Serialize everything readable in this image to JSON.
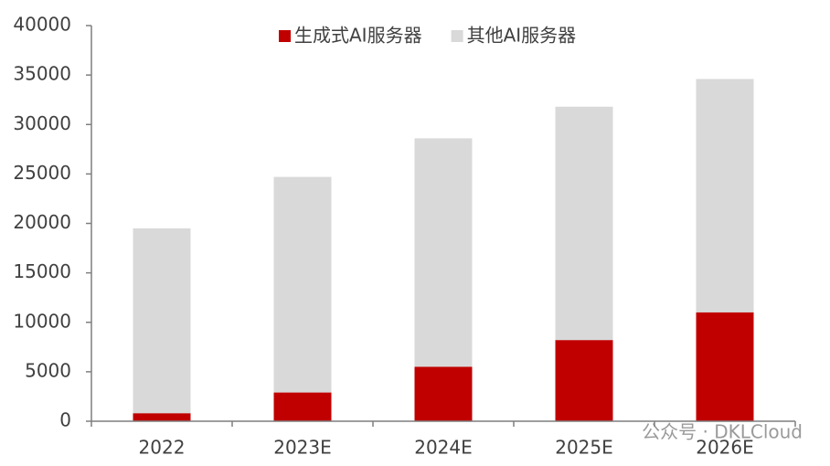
{
  "chart_data": {
    "type": "stacked_bar",
    "categories": [
      "2022",
      "2023E",
      "2024E",
      "2025E",
      "2026E"
    ],
    "series": [
      {
        "name": "生成式AI服务器",
        "color": "#c00000",
        "values": [
          800,
          2900,
          5500,
          8200,
          11000
        ]
      },
      {
        "name": "其他AI服务器",
        "color": "#d9d9d9",
        "values": [
          18700,
          21800,
          23100,
          23600,
          23600
        ]
      }
    ],
    "ylim": [
      0,
      40000
    ],
    "yticks": [
      0,
      5000,
      10000,
      15000,
      20000,
      25000,
      30000,
      35000,
      40000
    ],
    "grid": false,
    "legend": "top",
    "watermark": "公众号 · DKLCloud"
  }
}
